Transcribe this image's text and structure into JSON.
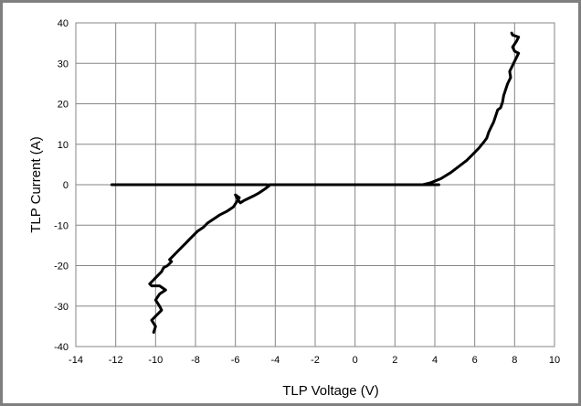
{
  "chart_data": {
    "type": "line",
    "title": "",
    "xlabel": "TLP Voltage (V)",
    "ylabel": "TLP Current (A)",
    "xlim": [
      -14,
      10
    ],
    "ylim": [
      -40,
      40
    ],
    "x_ticks": [
      -14,
      -12,
      -10,
      -8,
      -6,
      -4,
      -2,
      0,
      2,
      4,
      6,
      8,
      10
    ],
    "y_ticks": [
      -40,
      -30,
      -20,
      -10,
      0,
      10,
      20,
      30,
      40
    ],
    "grid": true,
    "legend": "none",
    "series_color": "#000000",
    "series": [
      {
        "x": [
          -12.2,
          -10.0,
          -8.0,
          -6.0,
          -5.0,
          -4.6,
          -4.4,
          -4.3,
          -4.5,
          -4.8,
          -5.1,
          -5.4,
          -5.6,
          -5.75,
          -5.9,
          -6.0,
          -5.8,
          -6.1,
          -6.4,
          -6.8,
          -7.1,
          -7.4,
          -7.6,
          -7.9,
          -8.1,
          -8.3,
          -8.5,
          -8.7,
          -8.9,
          -9.1,
          -9.3,
          -9.2,
          -9.4,
          -9.6,
          -9.7,
          -9.9,
          -10.0,
          -10.1,
          -10.3,
          -10.2,
          -9.8,
          -9.5,
          -9.8,
          -10.0,
          -9.8,
          -9.7,
          -10.0,
          -10.2,
          -10.0,
          -10.1
        ],
        "y": [
          0,
          0,
          0,
          0,
          0,
          0,
          0,
          -0.2,
          -1,
          -2,
          -2.8,
          -3.5,
          -4,
          -4.5,
          -3.5,
          -2.5,
          -3.2,
          -5.5,
          -6.5,
          -7.5,
          -8.5,
          -9.5,
          -10.5,
          -11.5,
          -12.5,
          -13.5,
          -14.5,
          -15.5,
          -16.5,
          -17.5,
          -18.5,
          -19,
          -20,
          -20.5,
          -21.5,
          -22.5,
          -23,
          -23.5,
          -24.5,
          -25,
          -25,
          -26,
          -27,
          -28.5,
          -30,
          -31,
          -32.5,
          -33.5,
          -35,
          -36.5
        ]
      },
      {
        "x": [
          4.2,
          3.5,
          0,
          -2,
          -4,
          -4.3
        ],
        "y": [
          0,
          0,
          0,
          0,
          0,
          0
        ]
      },
      {
        "x": [
          3.4,
          3.8,
          4.3,
          4.8,
          5.2,
          5.6,
          5.9,
          6.2,
          6.45,
          6.6,
          6.7,
          6.85,
          6.95,
          7.05,
          7.15,
          7.3,
          7.4,
          7.45,
          7.55,
          7.65,
          7.8,
          7.75,
          7.9,
          8.05,
          8.2,
          8.0,
          7.9,
          8.1,
          8.2,
          7.9,
          7.85
        ],
        "y": [
          0,
          0.5,
          1.5,
          3,
          4.5,
          6,
          7.5,
          9,
          10.5,
          11.5,
          13,
          14.5,
          15.5,
          17,
          18.5,
          19,
          20.5,
          22,
          23.5,
          25,
          26.5,
          28,
          29.5,
          31,
          32.5,
          33,
          34,
          35.5,
          36.5,
          37,
          37.5
        ]
      }
    ]
  }
}
